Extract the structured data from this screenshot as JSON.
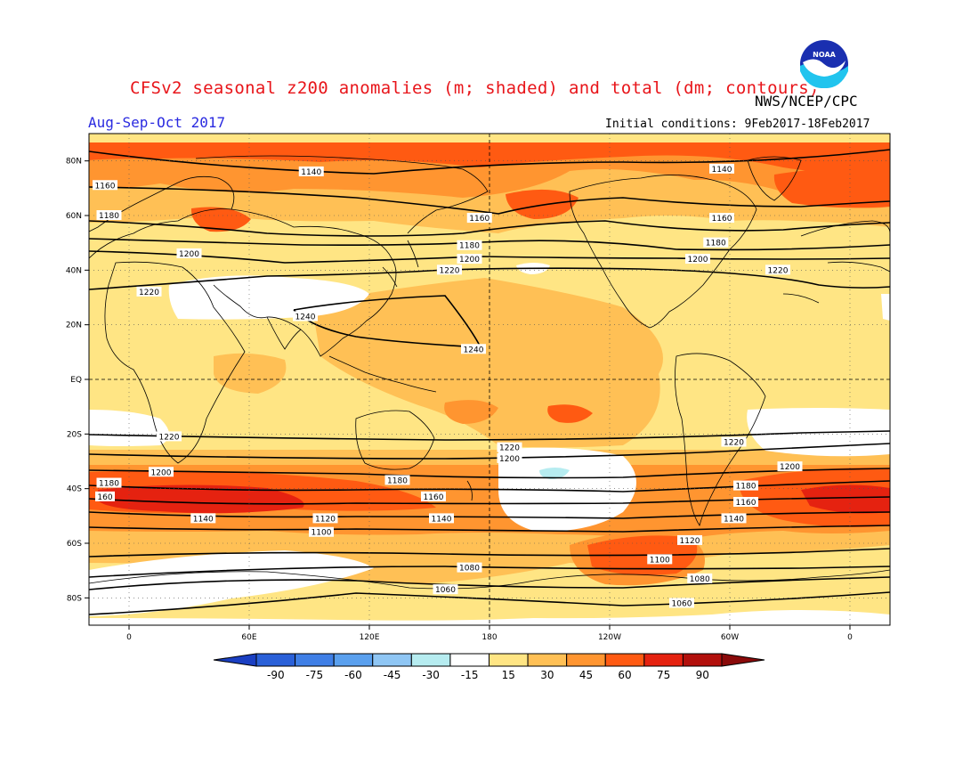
{
  "header": {
    "title": "CFSv2 seasonal z200 anomalies (m; shaded) and total (dm; contours)",
    "agency": "NWS/NCEP/CPC",
    "season": "Aug-Sep-Oct 2017",
    "initial_conditions": "Initial conditions: 9Feb2017-18Feb2017",
    "logo_text": "NOAA"
  },
  "map": {
    "lat_labels": [
      "80N",
      "60N",
      "40N",
      "20N",
      "EQ",
      "20S",
      "40S",
      "60S",
      "80S"
    ],
    "lat_values": [
      80,
      60,
      40,
      20,
      0,
      -20,
      -40,
      -60,
      -80
    ],
    "lon_labels": [
      "0",
      "60E",
      "120E",
      "180",
      "120W",
      "60W",
      "0"
    ],
    "lon_values": [
      0,
      60,
      120,
      180,
      240,
      300,
      360
    ],
    "lon_range": [
      -20,
      380
    ],
    "lat_range": [
      -90,
      90
    ],
    "contour_labels": [
      {
        "text": "1160",
        "lon": -12,
        "lat": 71
      },
      {
        "text": "1140",
        "lon": 91,
        "lat": 76
      },
      {
        "text": "1140",
        "lon": 296,
        "lat": 77
      },
      {
        "text": "1180",
        "lon": -10,
        "lat": 60
      },
      {
        "text": "1160",
        "lon": 175,
        "lat": 59
      },
      {
        "text": "1160",
        "lon": 296,
        "lat": 59
      },
      {
        "text": "1200",
        "lon": 30,
        "lat": 46
      },
      {
        "text": "1180",
        "lon": 170,
        "lat": 49
      },
      {
        "text": "1180",
        "lon": 293,
        "lat": 50
      },
      {
        "text": "1200",
        "lon": 170,
        "lat": 44
      },
      {
        "text": "1200",
        "lon": 284,
        "lat": 44
      },
      {
        "text": "1220",
        "lon": 160,
        "lat": 40
      },
      {
        "text": "1220",
        "lon": 324,
        "lat": 40
      },
      {
        "text": "1220",
        "lon": 10,
        "lat": 32
      },
      {
        "text": "1240",
        "lon": 88,
        "lat": 23
      },
      {
        "text": "1240",
        "lon": 172,
        "lat": 11
      },
      {
        "text": "1220",
        "lon": 20,
        "lat": -21
      },
      {
        "text": "1220",
        "lon": 190,
        "lat": -25
      },
      {
        "text": "1220",
        "lon": 302,
        "lat": -23
      },
      {
        "text": "1200",
        "lon": 190,
        "lat": -29
      },
      {
        "text": "1200",
        "lon": 330,
        "lat": -32
      },
      {
        "text": "1200",
        "lon": 16,
        "lat": -34
      },
      {
        "text": "1180",
        "lon": -10,
        "lat": -38
      },
      {
        "text": "1180",
        "lon": 134,
        "lat": -37
      },
      {
        "text": "1180",
        "lon": 308,
        "lat": -39
      },
      {
        "text": "160",
        "lon": -12,
        "lat": -43
      },
      {
        "text": "1160",
        "lon": 152,
        "lat": -43
      },
      {
        "text": "1160",
        "lon": 308,
        "lat": -45
      },
      {
        "text": "1140",
        "lon": 37,
        "lat": -51
      },
      {
        "text": "1120",
        "lon": 98,
        "lat": -51
      },
      {
        "text": "1140",
        "lon": 156,
        "lat": -51
      },
      {
        "text": "1140",
        "lon": 302,
        "lat": -51
      },
      {
        "text": "1100",
        "lon": 96,
        "lat": -56
      },
      {
        "text": "1120",
        "lon": 280,
        "lat": -59
      },
      {
        "text": "1080",
        "lon": 170,
        "lat": -69
      },
      {
        "text": "1100",
        "lon": 265,
        "lat": -66
      },
      {
        "text": "1080",
        "lon": 285,
        "lat": -73
      },
      {
        "text": "1060",
        "lon": 158,
        "lat": -77
      },
      {
        "text": "1060",
        "lon": 276,
        "lat": -82
      }
    ]
  },
  "colorbar": {
    "tick_labels": [
      "-90",
      "-75",
      "-60",
      "-45",
      "-30",
      "-15",
      "15",
      "30",
      "45",
      "60",
      "75",
      "90"
    ],
    "colors": [
      "#2a60d8",
      "#3f7fe6",
      "#5aa0ee",
      "#8fc6f4",
      "#b6ecf0",
      "#ffffff",
      "#ffe584",
      "#ffc055",
      "#ff9530",
      "#ff5a12",
      "#e52210",
      "#b2100c"
    ],
    "low_arrow_color": "#1a3fc2",
    "high_arrow_color": "#8a0a0a"
  },
  "colors": {
    "title": "#e8151a",
    "season": "#2a2ae0",
    "anomaly_15_30": "#ffe584",
    "anomaly_30_45": "#ffc055",
    "anomaly_45_60": "#ff9530",
    "anomaly_60_75": "#ff5a12",
    "anomaly_75_90": "#e52210",
    "anomaly_white": "#ffffff",
    "anomaly_neg": "#b6ecf0"
  }
}
